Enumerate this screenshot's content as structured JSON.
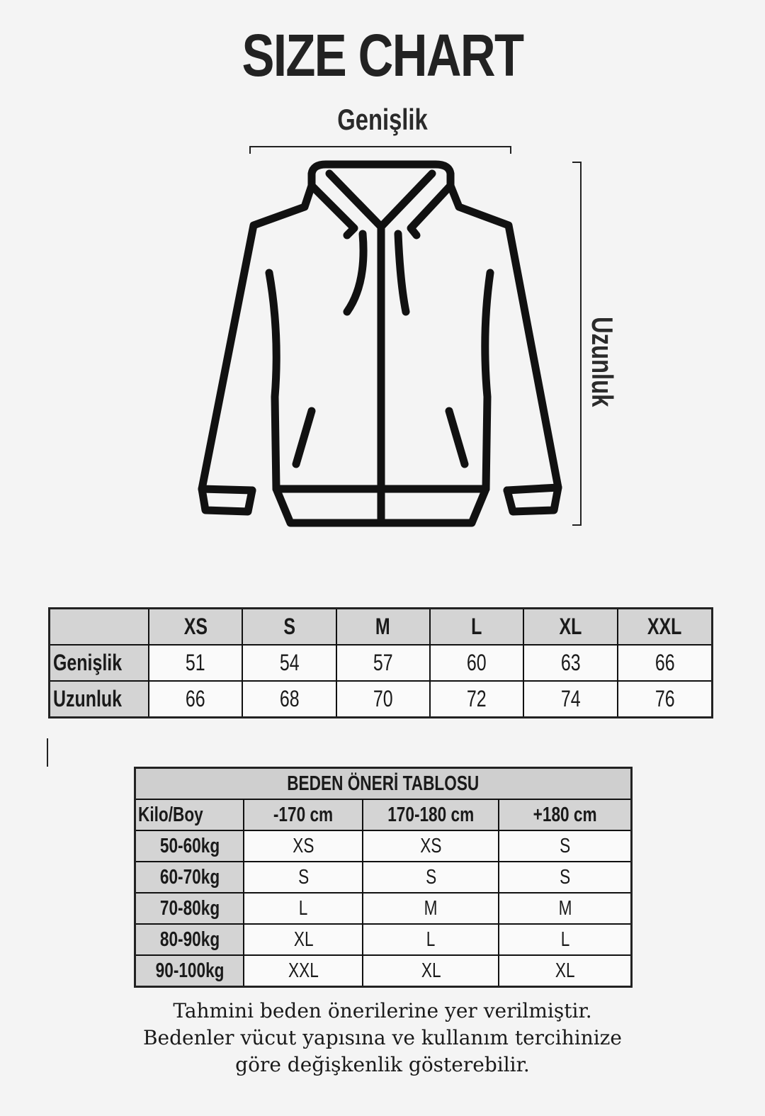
{
  "title": "SIZE CHART",
  "diagram": {
    "width_label": "Genişlik",
    "length_label": "Uzunluk",
    "icon": "hooded-zip-jacket-outline"
  },
  "measurement_table": {
    "sizes": [
      "XS",
      "S",
      "M",
      "L",
      "XL",
      "XXL"
    ],
    "rows": [
      {
        "label": "Genişlik",
        "values": [
          "51",
          "54",
          "57",
          "60",
          "63",
          "66"
        ]
      },
      {
        "label": "Uzunluk",
        "values": [
          "66",
          "68",
          "70",
          "72",
          "74",
          "76"
        ]
      }
    ]
  },
  "recommendation_table": {
    "title": "BEDEN ÖNERİ TABLOSU",
    "corner": "Kilo/Boy",
    "heights": [
      "-170 cm",
      "170-180 cm",
      "+180 cm"
    ],
    "rows": [
      {
        "weight": "50-60kg",
        "sizes": [
          "XS",
          "XS",
          "S"
        ]
      },
      {
        "weight": "60-70kg",
        "sizes": [
          "S",
          "S",
          "S"
        ]
      },
      {
        "weight": "70-80kg",
        "sizes": [
          "L",
          "M",
          "M"
        ]
      },
      {
        "weight": "80-90kg",
        "sizes": [
          "XL",
          "L",
          "L"
        ]
      },
      {
        "weight": "90-100kg",
        "sizes": [
          "XXL",
          "XL",
          "XL"
        ]
      }
    ]
  },
  "footer": {
    "lines": [
      "Tahmini beden önerilerine yer verilmiştir.",
      "Bedenler vücut yapısına ve kullanım tercihinize",
      "göre değişkenlik gösterebilir."
    ]
  }
}
